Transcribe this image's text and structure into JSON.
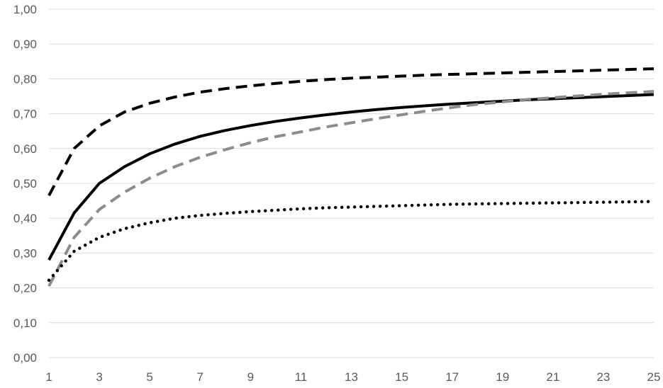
{
  "chart_data": {
    "type": "line",
    "title": "",
    "xlabel": "",
    "ylabel": "",
    "grid": "horizontal",
    "legend": "none",
    "xlim": [
      1,
      25
    ],
    "ylim": [
      0,
      1
    ],
    "x_ticks": [
      1,
      3,
      5,
      7,
      9,
      11,
      13,
      15,
      17,
      19,
      21,
      23,
      25
    ],
    "x_tick_labels": [
      "1",
      "3",
      "5",
      "7",
      "9",
      "11",
      "13",
      "15",
      "17",
      "19",
      "21",
      "23",
      "25"
    ],
    "y_ticks": [
      0,
      0.1,
      0.2,
      0.3,
      0.4,
      0.5,
      0.6,
      0.7,
      0.8,
      0.9,
      1.0
    ],
    "y_tick_labels": [
      "0,00",
      "0,10",
      "0,20",
      "0,30",
      "0,40",
      "0,50",
      "0,60",
      "0,70",
      "0,80",
      "0,90",
      "1,00"
    ],
    "x": [
      1,
      2,
      3,
      4,
      5,
      6,
      7,
      8,
      9,
      10,
      11,
      12,
      13,
      14,
      15,
      16,
      17,
      18,
      19,
      20,
      21,
      22,
      23,
      24,
      25
    ],
    "series": [
      {
        "style": "black-dashed",
        "color": "#000000",
        "dash": "dashed",
        "values": [
          0.465,
          0.6,
          0.665,
          0.705,
          0.73,
          0.748,
          0.762,
          0.772,
          0.78,
          0.787,
          0.793,
          0.798,
          0.802,
          0.805,
          0.808,
          0.811,
          0.813,
          0.815,
          0.817,
          0.819,
          0.821,
          0.823,
          0.825,
          0.827,
          0.829
        ]
      },
      {
        "style": "black-solid",
        "color": "#000000",
        "dash": "solid",
        "values": [
          0.28,
          0.415,
          0.5,
          0.548,
          0.585,
          0.613,
          0.635,
          0.652,
          0.666,
          0.678,
          0.688,
          0.697,
          0.705,
          0.712,
          0.718,
          0.723,
          0.728,
          0.732,
          0.736,
          0.74,
          0.743,
          0.746,
          0.749,
          0.752,
          0.755
        ]
      },
      {
        "style": "gray-dashed",
        "color": "#8c8c8c",
        "dash": "dashed",
        "values": [
          0.205,
          0.345,
          0.425,
          0.475,
          0.515,
          0.548,
          0.575,
          0.597,
          0.617,
          0.634,
          0.648,
          0.662,
          0.674,
          0.686,
          0.697,
          0.708,
          0.718,
          0.727,
          0.734,
          0.741,
          0.746,
          0.751,
          0.756,
          0.76,
          0.764
        ]
      },
      {
        "style": "black-dotted",
        "color": "#000000",
        "dash": "dotted",
        "values": [
          0.222,
          0.305,
          0.345,
          0.37,
          0.387,
          0.4,
          0.408,
          0.414,
          0.419,
          0.423,
          0.427,
          0.43,
          0.432,
          0.434,
          0.436,
          0.438,
          0.44,
          0.441,
          0.442,
          0.443,
          0.444,
          0.445,
          0.446,
          0.447,
          0.448
        ]
      }
    ]
  }
}
